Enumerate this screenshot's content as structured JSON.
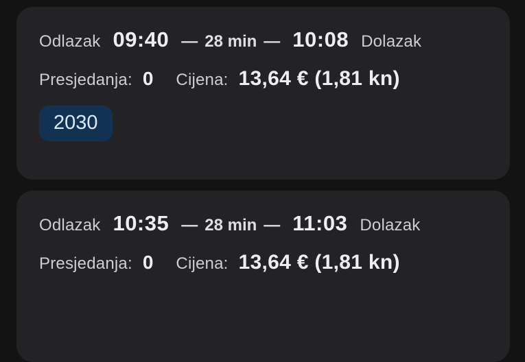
{
  "colors": {
    "page_bg": "#131314",
    "card_bg": "#232325",
    "badge_bg": "#123254",
    "badge_text": "#d9e7f8"
  },
  "cards": [
    {
      "departure_label": "Odlazak",
      "departure_time": "09:40",
      "separator_dash": "—",
      "duration": "28 min",
      "arrival_time": "10:08",
      "arrival_label": "Dolazak",
      "transfers_label": "Presjedanja:",
      "transfers_value": "0",
      "price_label": "Cijena:",
      "price_value": "13,64 € (1,81 kn)",
      "train_badge": "2030"
    },
    {
      "departure_label": "Odlazak",
      "departure_time": "10:35",
      "separator_dash": "—",
      "duration": "28 min",
      "arrival_time": "11:03",
      "arrival_label": "Dolazak",
      "transfers_label": "Presjedanja:",
      "transfers_value": "0",
      "price_label": "Cijena:",
      "price_value": "13,64 € (1,81 kn)"
    }
  ]
}
